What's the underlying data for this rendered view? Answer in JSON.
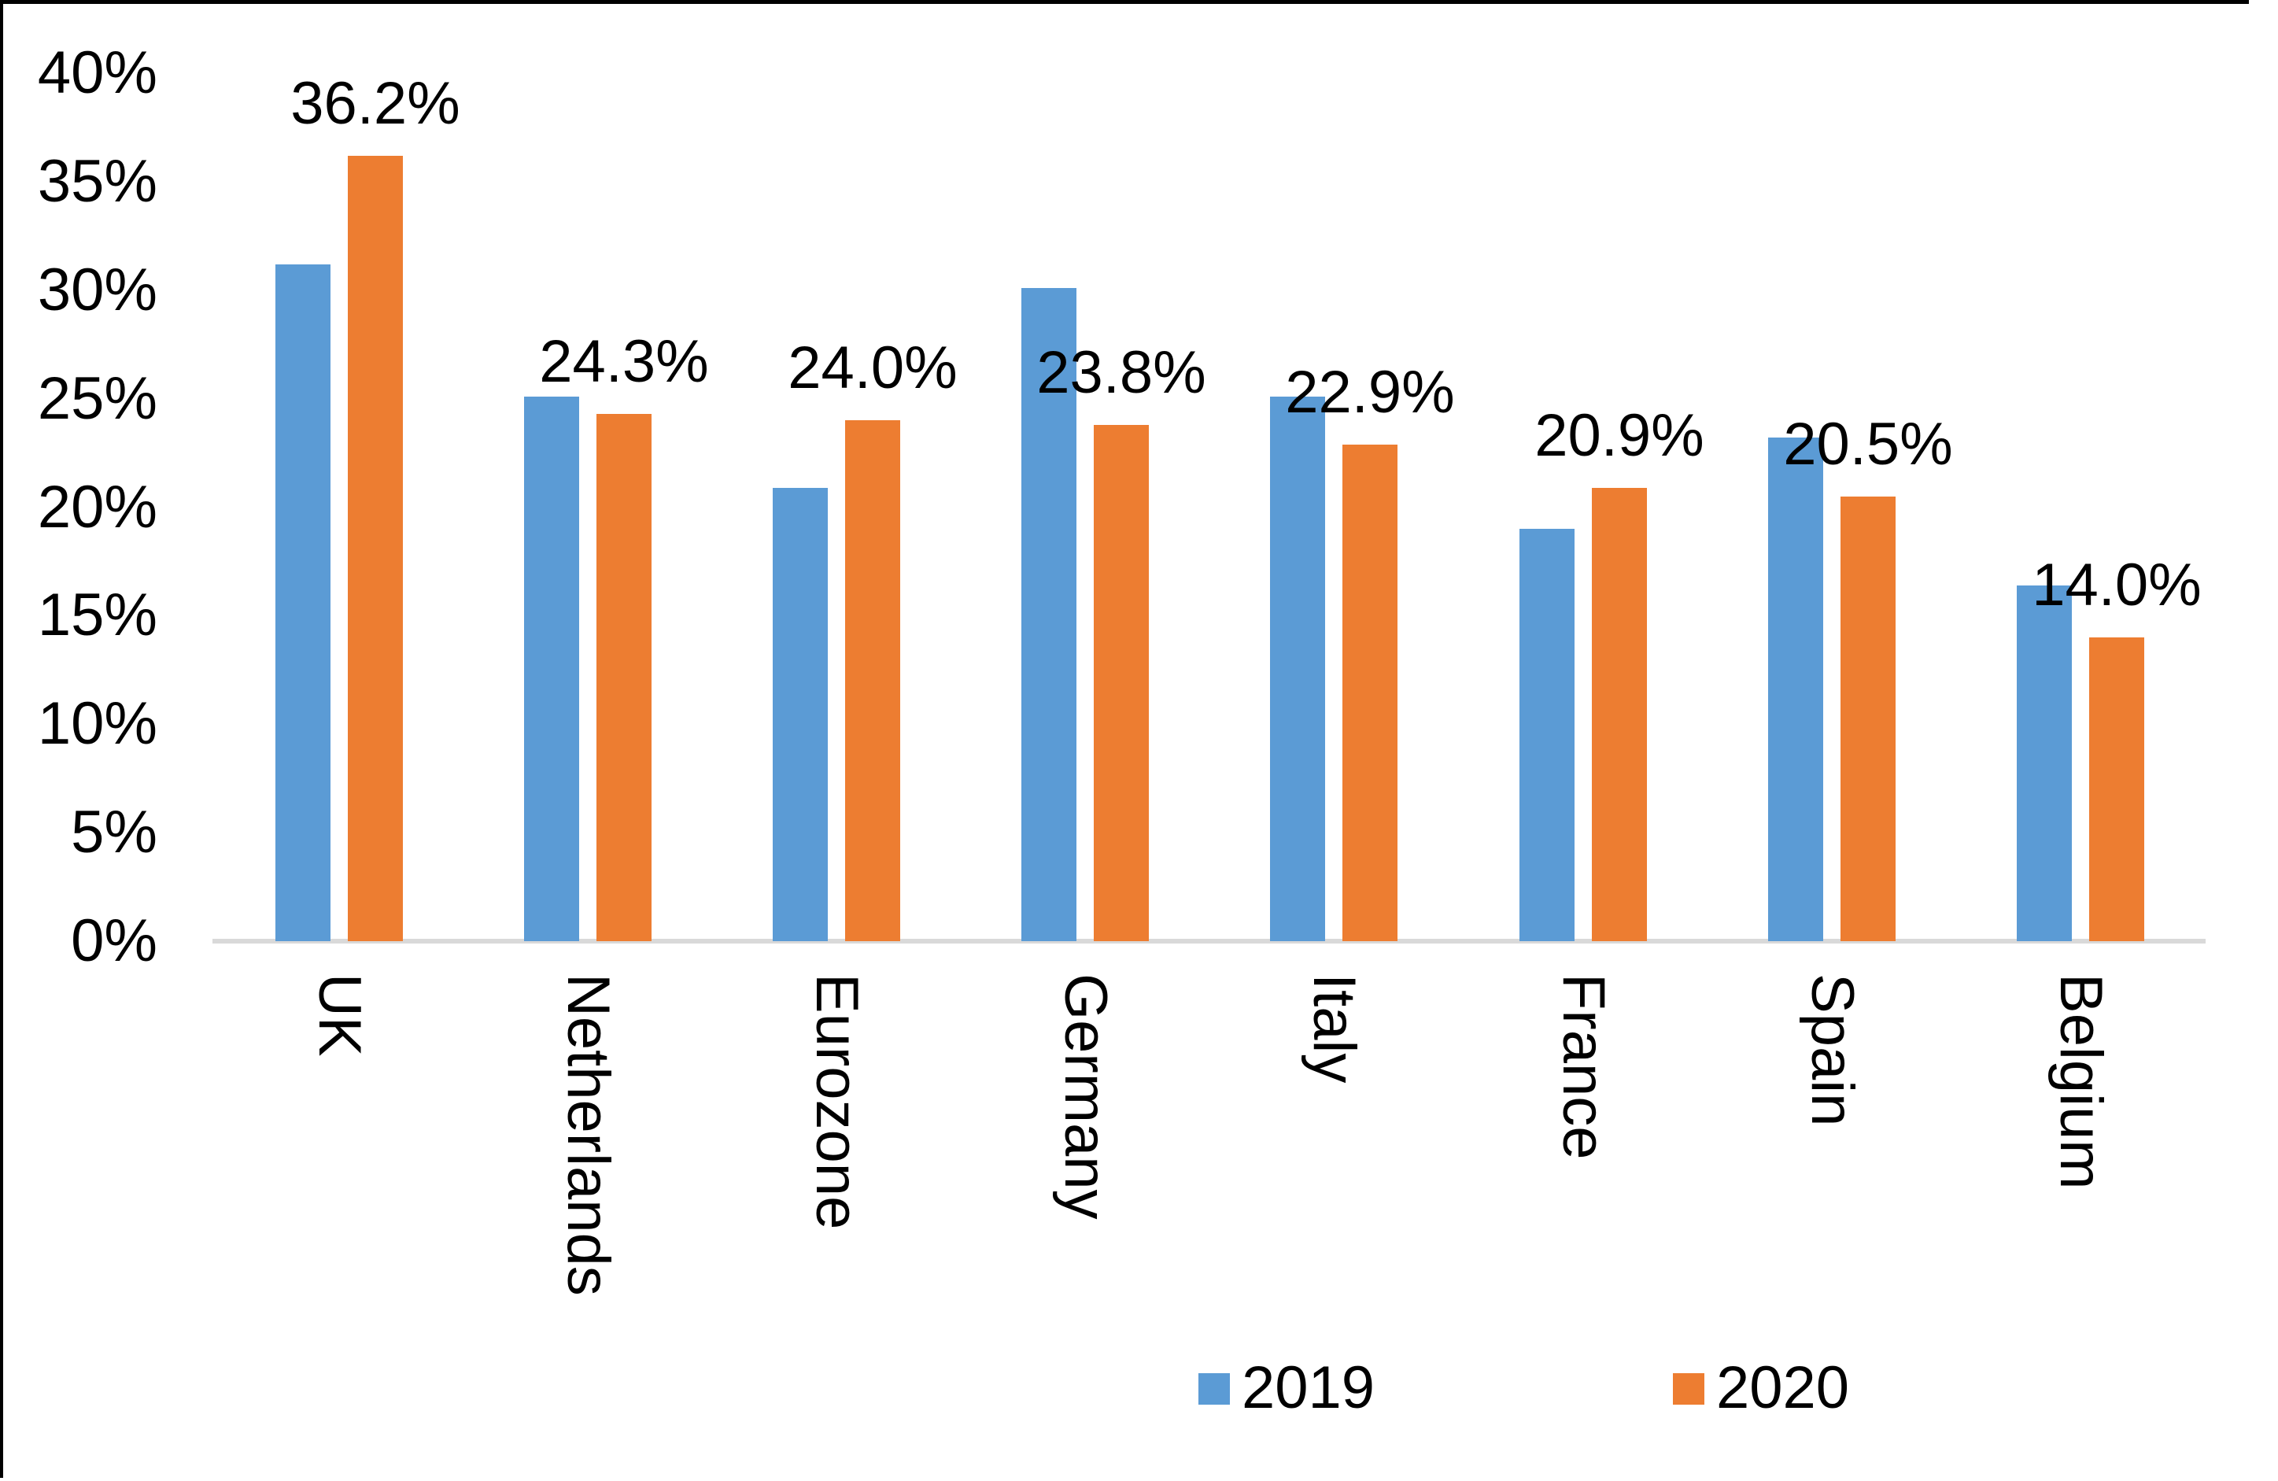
{
  "chart_data": {
    "type": "bar",
    "categories": [
      "UK",
      "Netherlands",
      "Eurozone",
      "Germany",
      "Italy",
      "France",
      "Spain",
      "Belgium"
    ],
    "series": [
      {
        "name": "2019",
        "color": "#5B9BD5",
        "values": [
          31.2,
          25.1,
          20.9,
          30.1,
          25.1,
          19.0,
          23.2,
          16.4
        ]
      },
      {
        "name": "2020",
        "color": "#ED7D31",
        "values": [
          36.2,
          24.3,
          24.0,
          23.8,
          22.9,
          20.9,
          20.5,
          14.0
        ],
        "data_labels": [
          "36.2%",
          "24.3%",
          "24.0%",
          "23.8%",
          "22.9%",
          "20.9%",
          "20.5%",
          "14.0%"
        ]
      }
    ],
    "ylim": [
      0,
      40
    ],
    "yticks": [
      {
        "value": 0,
        "label": "0%"
      },
      {
        "value": 5,
        "label": "5%"
      },
      {
        "value": 10,
        "label": "10%"
      },
      {
        "value": 15,
        "label": "15%"
      },
      {
        "value": 20,
        "label": "20%"
      },
      {
        "value": 25,
        "label": "25%"
      },
      {
        "value": 30,
        "label": "30%"
      },
      {
        "value": 35,
        "label": "35%"
      },
      {
        "value": 40,
        "label": "40%"
      },
      {
        "value": 40,
        "label": "40%"
      }
    ],
    "grid": false,
    "legend_position": "bottom"
  },
  "legend": {
    "items": [
      {
        "label": "2019",
        "color": "#5B9BD5"
      },
      {
        "label": "2020",
        "color": "#ED7D31"
      }
    ]
  },
  "colors": {
    "axis_line": "#D9D9D9",
    "text": "#000000",
    "background": "#FFFFFF",
    "border": "#000000"
  }
}
